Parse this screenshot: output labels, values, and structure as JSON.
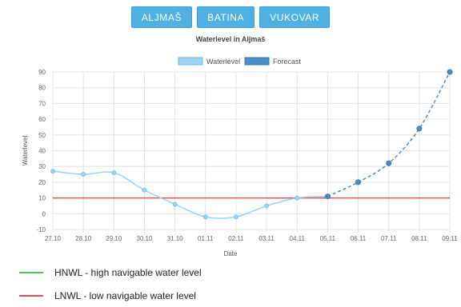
{
  "tabs": [
    "ALJMAŠ",
    "BATINA",
    "VUKOVAR"
  ],
  "chart_data": {
    "type": "line",
    "title": "Waterlevel in Aljmaš",
    "xlabel": "Date",
    "ylabel": "Waterlevel",
    "categories": [
      "27.10",
      "28.10",
      "29.10",
      "30.10",
      "31.10",
      "01.11",
      "02.11",
      "03.11",
      "04.11",
      "05.11",
      "06.11",
      "07.11",
      "08.11",
      "09.11"
    ],
    "ylim": [
      -10,
      90
    ],
    "yticks": [
      -10,
      0,
      10,
      20,
      30,
      40,
      50,
      60,
      70,
      80,
      90
    ],
    "grid": true,
    "legend_position": "top-center",
    "series": [
      {
        "name": "Waterlevel",
        "values": [
          27,
          25,
          26,
          15,
          6,
          -2,
          -2,
          5,
          10,
          11,
          null,
          null,
          null,
          null
        ],
        "color": "#9cd3f2",
        "style": "solid"
      },
      {
        "name": "Forecast",
        "values": [
          null,
          null,
          null,
          null,
          null,
          null,
          null,
          null,
          null,
          11,
          20,
          32,
          54,
          90
        ],
        "color": "#4a8ec4",
        "style": "dashed"
      }
    ],
    "reference_lines": [
      {
        "value": 10,
        "color": "#d9534f"
      }
    ]
  },
  "legend_lines": [
    {
      "label": "HNWL - high navigable water level",
      "color": "#5cb85c"
    },
    {
      "label": "LNWL - low navigable water level",
      "color": "#d9534f"
    }
  ]
}
